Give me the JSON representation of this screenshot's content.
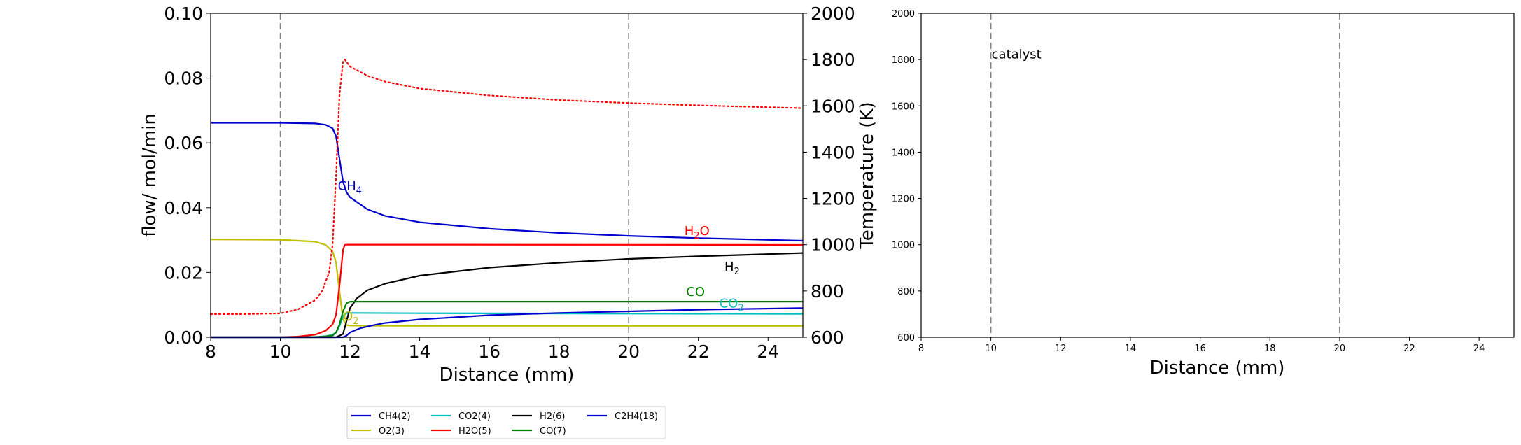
{
  "chart_data": [
    {
      "type": "line",
      "xlabel": "Distance (mm)",
      "ylabel": "flow/ mol/min",
      "y2label": "Temperature (K)",
      "xlim": [
        8,
        25
      ],
      "ylim": [
        0,
        0.1
      ],
      "y2lim": [
        600,
        2000
      ],
      "x_ticks": [
        "8",
        "10",
        "12",
        "14",
        "16",
        "18",
        "20",
        "22",
        "24"
      ],
      "y_ticks": [
        "0.00",
        "0.02",
        "0.04",
        "0.06",
        "0.08",
        "0.10"
      ],
      "y2_ticks": [
        "600",
        "800",
        "1000",
        "1200",
        "1400",
        "1600",
        "1800",
        "2000"
      ],
      "vlines": [
        10,
        20
      ],
      "grid": false,
      "legend_position": "bottom",
      "series": [
        {
          "name": "CH4(2)",
          "color": "#0000cc",
          "axis": "left",
          "x": [
            8,
            10,
            11,
            11.3,
            11.5,
            11.6,
            11.7,
            11.8,
            11.9,
            12,
            12.5,
            13,
            14,
            16,
            18,
            20,
            22,
            25
          ],
          "y": [
            0.0662,
            0.0662,
            0.066,
            0.0656,
            0.0645,
            0.062,
            0.055,
            0.048,
            0.0448,
            0.0432,
            0.0395,
            0.0375,
            0.0355,
            0.0335,
            0.0322,
            0.0313,
            0.0306,
            0.0298
          ]
        },
        {
          "name": "O2(3)",
          "color": "#bfbf00",
          "axis": "left",
          "x": [
            8,
            10,
            11,
            11.3,
            11.5,
            11.6,
            11.7,
            11.8,
            11.9,
            12,
            14,
            25
          ],
          "y": [
            0.0302,
            0.0301,
            0.0295,
            0.0285,
            0.0265,
            0.023,
            0.014,
            0.0055,
            0.0038,
            0.0036,
            0.0035,
            0.0035
          ]
        },
        {
          "name": "CO2(4)",
          "color": "#00bfbf",
          "axis": "left",
          "x": [
            8,
            10,
            11,
            11.3,
            11.5,
            11.6,
            11.7,
            11.8,
            11.9,
            12,
            14,
            25
          ],
          "y": [
            0,
            0,
            0.0001,
            0.0003,
            0.0008,
            0.0015,
            0.0035,
            0.0065,
            0.0074,
            0.0075,
            0.0074,
            0.0072
          ]
        },
        {
          "name": "H2O(5)",
          "color": "#ff0000",
          "axis": "left",
          "x": [
            8,
            10,
            10.5,
            11,
            11.3,
            11.5,
            11.6,
            11.7,
            11.8,
            11.85,
            11.9,
            12,
            14,
            25
          ],
          "y": [
            0,
            0,
            0.0002,
            0.0008,
            0.002,
            0.004,
            0.007,
            0.016,
            0.027,
            0.0285,
            0.0286,
            0.0286,
            0.0286,
            0.0285
          ]
        },
        {
          "name": "H2(6)",
          "color": "#000000",
          "axis": "left",
          "x": [
            8,
            11,
            11.6,
            11.8,
            11.9,
            12,
            12.2,
            12.5,
            13,
            14,
            16,
            18,
            20,
            22,
            25
          ],
          "y": [
            0,
            0,
            0,
            0.001,
            0.005,
            0.009,
            0.012,
            0.0145,
            0.0165,
            0.019,
            0.0215,
            0.023,
            0.0242,
            0.025,
            0.026
          ]
        },
        {
          "name": "CO(7)",
          "color": "#008000",
          "axis": "left",
          "x": [
            8,
            11,
            11.5,
            11.6,
            11.7,
            11.8,
            11.9,
            12,
            14,
            20,
            25
          ],
          "y": [
            0,
            0,
            0.0005,
            0.0015,
            0.004,
            0.008,
            0.0105,
            0.011,
            0.011,
            0.011,
            0.011
          ]
        },
        {
          "name": "C2H4(18)",
          "color": "#0000cc",
          "axis": "left",
          "x": [
            8,
            11.8,
            11.9,
            12,
            12.3,
            12.7,
            13,
            14,
            16,
            18,
            20,
            22,
            25
          ],
          "y": [
            0,
            0,
            0.0005,
            0.0015,
            0.0028,
            0.0038,
            0.0044,
            0.0055,
            0.0068,
            0.0075,
            0.008,
            0.0085,
            0.009
          ]
        },
        {
          "name": "T",
          "color": "#ff0000",
          "axis": "right",
          "style": "dotted",
          "x": [
            8,
            9,
            10,
            10.5,
            11,
            11.2,
            11.4,
            11.5,
            11.6,
            11.7,
            11.8,
            11.85,
            11.9,
            12,
            12.5,
            13,
            14,
            16,
            18,
            20,
            22,
            25
          ],
          "y": [
            700,
            700,
            703,
            720,
            760,
            800,
            880,
            1000,
            1300,
            1650,
            1790,
            1800,
            1790,
            1770,
            1730,
            1705,
            1675,
            1645,
            1625,
            1612,
            1602,
            1590
          ]
        }
      ],
      "annotations": [
        {
          "text": "CH",
          "sub": "4",
          "x": 11.65,
          "y": 0.0455,
          "color": "#0000cc"
        },
        {
          "text": "H",
          "sub": "2",
          "tail": "O",
          "x": 21.6,
          "y": 0.0315,
          "color": "#ff0000"
        },
        {
          "text": "H",
          "sub": "2",
          "x": 22.75,
          "y": 0.0205,
          "color": "#000000"
        },
        {
          "text": "CO",
          "x": 21.65,
          "y": 0.0127,
          "color": "#008000"
        },
        {
          "text": "CO",
          "sub": "2",
          "x": 22.6,
          "y": 0.0092,
          "color": "#00bfbf"
        },
        {
          "text": "O",
          "sub": "2",
          "x": 11.8,
          "y": 0.0052,
          "color": "#bfbf00"
        }
      ],
      "legend": {
        "columns": [
          [
            {
              "label": "CH4(2)",
              "color": "#0000cc"
            },
            {
              "label": "O2(3)",
              "color": "#bfbf00"
            }
          ],
          [
            {
              "label": "CO2(4)",
              "color": "#00bfbf"
            },
            {
              "label": "H2O(5)",
              "color": "#ff0000"
            }
          ],
          [
            {
              "label": "H2(6)",
              "color": "#000000"
            },
            {
              "label": "CO(7)",
              "color": "#008000"
            }
          ],
          [
            {
              "label": "C2H4(18)",
              "color": "#0000cc"
            }
          ]
        ]
      }
    },
    {
      "type": "line",
      "xlabel": "Distance (mm)",
      "xlim": [
        8,
        25
      ],
      "ylim": [
        600,
        2000
      ],
      "x_ticks": [
        "8",
        "10",
        "12",
        "14",
        "16",
        "18",
        "20",
        "22",
        "24"
      ],
      "y_ticks": [
        "600",
        "800",
        "1000",
        "1200",
        "1400",
        "1600",
        "1800",
        "2000"
      ],
      "vlines": [
        10,
        20
      ],
      "grid": false,
      "series": [],
      "annotations": [
        {
          "text": "catalyst",
          "x": 10,
          "y": 1820,
          "color": "#000000"
        }
      ]
    }
  ]
}
